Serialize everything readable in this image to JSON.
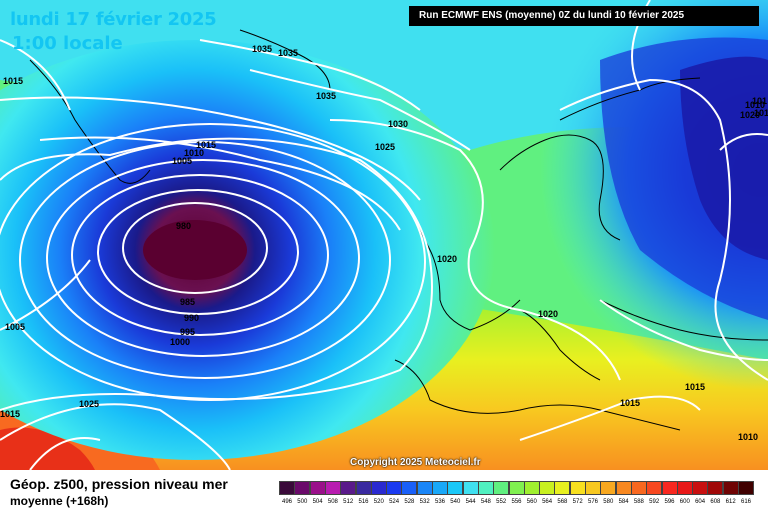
{
  "header": {
    "date": "lundi 17 février 2025",
    "time": "1:00 locale",
    "run": "Run ECMWF ENS (moyenne) 0Z du lundi 10 février 2025"
  },
  "copyright": "Copyright 2025 Meteociel.fr",
  "legend": {
    "title": "Géop. z500, pression niveau mer",
    "subtitle": "moyenne   (+168h)",
    "values": [
      "496",
      "500",
      "504",
      "508",
      "512",
      "516",
      "520",
      "524",
      "528",
      "532",
      "536",
      "540",
      "544",
      "548",
      "552",
      "556",
      "560",
      "564",
      "568",
      "572",
      "576",
      "580",
      "584",
      "588",
      "592",
      "596",
      "600",
      "604",
      "608",
      "612",
      "616"
    ],
    "colors": [
      "#3a0a3a",
      "#6a0a6a",
      "#9a108a",
      "#b81cb0",
      "#5a1a8a",
      "#3a2aa0",
      "#2a2ad0",
      "#1a3af0",
      "#1a60f8",
      "#1a86f8",
      "#1aa8f8",
      "#1ac8f8",
      "#40e0f0",
      "#50f0c0",
      "#60f080",
      "#80f050",
      "#a0f030",
      "#c8f020",
      "#e8f020",
      "#f8e020",
      "#f8c820",
      "#f8a820",
      "#f88820",
      "#f86820",
      "#f84820",
      "#f82820",
      "#e81818",
      "#c81010",
      "#a00808",
      "#700404",
      "#400000"
    ]
  },
  "map": {
    "colors": {
      "low_core": "#5a0030",
      "deep_blue": "#1a1aa8",
      "blue": "#1a50e8",
      "light_blue": "#1ab0f8",
      "cyan": "#40e8f0",
      "green": "#60f070",
      "yellow_green": "#c8f020",
      "yellow": "#f8e020",
      "orange": "#f8a830",
      "red": "#f84020"
    },
    "isobar_labels": [
      {
        "text": "1035"
      },
      {
        "text": "1035"
      },
      {
        "text": "1015"
      },
      {
        "text": "1035"
      },
      {
        "text": "1030"
      },
      {
        "text": "1025"
      },
      {
        "text": "1015"
      },
      {
        "text": "1010"
      },
      {
        "text": "1005"
      },
      {
        "text": "980"
      },
      {
        "text": "985"
      },
      {
        "text": "990"
      },
      {
        "text": "995"
      },
      {
        "text": "1000"
      },
      {
        "text": "1005"
      },
      {
        "text": "1020"
      },
      {
        "text": "1020"
      },
      {
        "text": "1025"
      },
      {
        "text": "1015"
      },
      {
        "text": "1015"
      },
      {
        "text": "1015"
      },
      {
        "text": "1010"
      },
      {
        "text": "1010"
      },
      {
        "text": "1020"
      },
      {
        "text": "101"
      },
      {
        "text": "101"
      }
    ]
  }
}
